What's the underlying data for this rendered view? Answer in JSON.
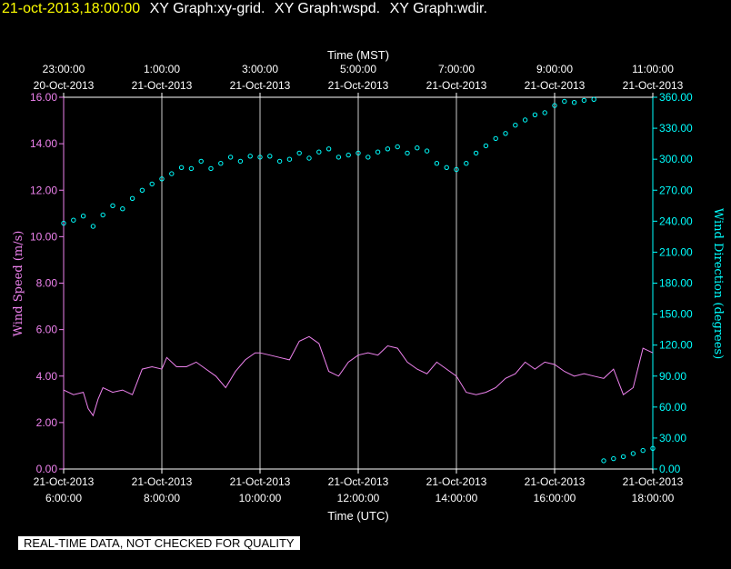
{
  "header": {
    "timestamp": "21-oct-2013,18:00:00",
    "graphs": [
      "XY Graph:xy-grid.",
      "XY Graph:wspd.",
      "XY Graph:wdir."
    ]
  },
  "footer": {
    "note": "REAL-TIME DATA, NOT CHECKED FOR QUALITY"
  },
  "colors": {
    "background": "#000000",
    "axis": "#ffffff",
    "wind_speed": "#ee82ee",
    "wind_direction": "#00ffff",
    "timestamp": "#ffff00"
  },
  "chart_data": {
    "type": "line",
    "grid": true,
    "x_bottom": {
      "label": "Time (UTC)",
      "range_hours": [
        6,
        18
      ],
      "ticks": [
        {
          "h": 6,
          "date": "21-Oct-2013",
          "time": "6:00:00"
        },
        {
          "h": 8,
          "date": "21-Oct-2013",
          "time": "8:00:00"
        },
        {
          "h": 10,
          "date": "21-Oct-2013",
          "time": "10:00:00"
        },
        {
          "h": 12,
          "date": "21-Oct-2013",
          "time": "12:00:00"
        },
        {
          "h": 14,
          "date": "21-Oct-2013",
          "time": "14:00:00"
        },
        {
          "h": 16,
          "date": "21-Oct-2013",
          "time": "16:00:00"
        },
        {
          "h": 18,
          "date": "21-Oct-2013",
          "time": "18:00:00"
        }
      ]
    },
    "x_top": {
      "label": "Time (MST)",
      "ticks": [
        {
          "h": 6,
          "time": "23:00:00",
          "date": "20-Oct-2013"
        },
        {
          "h": 8,
          "time": "1:00:00",
          "date": "21-Oct-2013"
        },
        {
          "h": 10,
          "time": "3:00:00",
          "date": "21-Oct-2013"
        },
        {
          "h": 12,
          "time": "5:00:00",
          "date": "21-Oct-2013"
        },
        {
          "h": 14,
          "time": "7:00:00",
          "date": "21-Oct-2013"
        },
        {
          "h": 16,
          "time": "9:00:00",
          "date": "21-Oct-2013"
        },
        {
          "h": 18,
          "time": "11:00:00",
          "date": "21-Oct-2013"
        }
      ]
    },
    "y_left": {
      "label": "Wind Speed (m/s)",
      "range": [
        0,
        16
      ],
      "ticks": [
        "0.00",
        "2.00",
        "4.00",
        "6.00",
        "8.00",
        "10.00",
        "12.00",
        "14.00",
        "16.00"
      ]
    },
    "y_right": {
      "label": "Wind Direction (degrees)",
      "range": [
        0,
        360
      ],
      "ticks": [
        "0.00",
        "30.00",
        "60.00",
        "90.00",
        "120.00",
        "150.00",
        "180.00",
        "210.00",
        "240.00",
        "270.00",
        "300.00",
        "330.00",
        "360.00"
      ]
    },
    "series": [
      {
        "axis": "left",
        "style": "line",
        "x_hours": [
          6.0,
          6.2,
          6.4,
          6.5,
          6.6,
          6.7,
          6.8,
          7.0,
          7.2,
          7.4,
          7.6,
          7.8,
          8.0,
          8.1,
          8.3,
          8.5,
          8.7,
          8.9,
          9.1,
          9.3,
          9.5,
          9.7,
          9.9,
          10.0,
          10.2,
          10.4,
          10.6,
          10.8,
          11.0,
          11.2,
          11.4,
          11.6,
          11.8,
          12.0,
          12.2,
          12.4,
          12.6,
          12.8,
          13.0,
          13.2,
          13.4,
          13.6,
          13.8,
          14.0,
          14.2,
          14.4,
          14.6,
          14.8,
          15.0,
          15.2,
          15.4,
          15.6,
          15.8,
          16.0,
          16.2,
          16.4,
          16.6,
          16.8,
          17.0,
          17.2,
          17.4,
          17.6,
          17.8,
          18.0
        ],
        "values": [
          3.4,
          3.2,
          3.3,
          2.6,
          2.3,
          3.0,
          3.5,
          3.3,
          3.4,
          3.2,
          4.3,
          4.4,
          4.3,
          4.8,
          4.4,
          4.4,
          4.6,
          4.3,
          4.0,
          3.5,
          4.2,
          4.7,
          5.0,
          5.0,
          4.9,
          4.8,
          4.7,
          5.5,
          5.7,
          5.4,
          4.2,
          4.0,
          4.6,
          4.9,
          5.0,
          4.9,
          5.3,
          5.2,
          4.6,
          4.3,
          4.1,
          4.6,
          4.3,
          4.0,
          3.3,
          3.2,
          3.3,
          3.5,
          3.9,
          4.1,
          4.6,
          4.3,
          4.6,
          4.5,
          4.2,
          4.0,
          4.1,
          4.0,
          3.9,
          4.3,
          3.2,
          3.5,
          5.2,
          5.0
        ]
      },
      {
        "axis": "right",
        "style": "markers",
        "x_hours": [
          6.0,
          6.2,
          6.4,
          6.6,
          6.8,
          7.0,
          7.2,
          7.4,
          7.6,
          7.8,
          8.0,
          8.2,
          8.4,
          8.6,
          8.8,
          9.0,
          9.2,
          9.4,
          9.6,
          9.8,
          10.0,
          10.2,
          10.4,
          10.6,
          10.8,
          11.0,
          11.2,
          11.4,
          11.6,
          11.8,
          12.0,
          12.2,
          12.4,
          12.6,
          12.8,
          13.0,
          13.2,
          13.4,
          13.6,
          13.8,
          14.0,
          14.2,
          14.4,
          14.6,
          14.8,
          15.0,
          15.2,
          15.4,
          15.6,
          15.8,
          16.0,
          16.2,
          16.4,
          16.6,
          16.8,
          17.0,
          17.2,
          17.4,
          17.6,
          17.8,
          18.0
        ],
        "values": [
          238,
          241,
          245,
          235,
          246,
          255,
          252,
          262,
          270,
          276,
          281,
          286,
          292,
          291,
          298,
          291,
          296,
          302,
          298,
          303,
          302,
          303,
          298,
          300,
          306,
          301,
          307,
          310,
          302,
          304,
          306,
          302,
          307,
          310,
          312,
          306,
          311,
          308,
          296,
          292,
          290,
          296,
          306,
          313,
          320,
          325,
          333,
          338,
          343,
          345,
          352,
          356,
          355,
          357,
          358,
          8,
          10,
          12,
          15,
          18,
          20
        ]
      }
    ]
  }
}
